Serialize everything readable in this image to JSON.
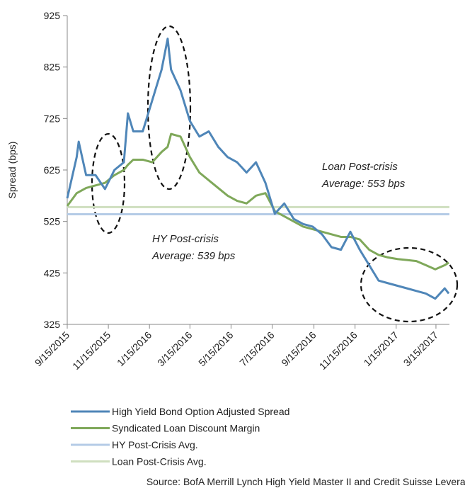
{
  "chart_data": {
    "type": "line",
    "y_label": "Spread (bps)",
    "x": [
      "9/15/2015",
      "9/29/2015",
      "10/2/2015",
      "10/13/2015",
      "10/27/2015",
      "11/10/2015",
      "11/24/2015",
      "12/8/2015",
      "12/14/2015",
      "12/22/2015",
      "1/5/2016",
      "1/19/2016",
      "2/2/2016",
      "2/11/2016",
      "2/16/2016",
      "3/1/2016",
      "3/15/2016",
      "3/29/2016",
      "4/12/2016",
      "4/26/2016",
      "5/10/2016",
      "5/24/2016",
      "6/7/2016",
      "6/21/2016",
      "7/5/2016",
      "7/19/2016",
      "8/2/2016",
      "8/16/2016",
      "8/30/2016",
      "9/13/2016",
      "9/27/2016",
      "10/11/2016",
      "10/25/2016",
      "11/8/2016",
      "11/22/2016",
      "12/6/2016",
      "12/20/2016",
      "1/3/2017",
      "1/17/2017",
      "1/31/2017",
      "2/14/2017",
      "2/28/2017",
      "3/14/2017",
      "3/28/2017",
      "4/3/2017"
    ],
    "series": [
      {
        "name": "High Yield Bond Option Adjusted Spread",
        "color": "#4f86b8",
        "values": [
          570,
          650,
          680,
          615,
          615,
          588,
          625,
          640,
          735,
          700,
          700,
          760,
          820,
          880,
          820,
          780,
          720,
          690,
          700,
          670,
          650,
          640,
          620,
          640,
          600,
          540,
          560,
          530,
          520,
          515,
          500,
          475,
          470,
          505,
          470,
          440,
          410,
          405,
          400,
          395,
          390,
          385,
          375,
          395,
          385
        ]
      },
      {
        "name": "Syndicated Loan Discount Margin",
        "color": "#7fa85a",
        "values": [
          555,
          580,
          582,
          590,
          595,
          600,
          615,
          625,
          635,
          645,
          645,
          640,
          660,
          670,
          695,
          690,
          650,
          620,
          605,
          590,
          575,
          565,
          560,
          575,
          580,
          545,
          535,
          525,
          515,
          510,
          505,
          500,
          495,
          495,
          490,
          470,
          460,
          455,
          452,
          450,
          448,
          440,
          432,
          440,
          445
        ]
      }
    ],
    "reference_lines": [
      {
        "name": "HY Post-Crisis Avg.",
        "value": 539,
        "color": "#b4cbe6"
      },
      {
        "name": "Loan Post-Crisis Avg.",
        "value": 553,
        "color": "#cfdfbf"
      }
    ],
    "annotations": [
      {
        "lines": [
          "Loan Post-crisis",
          "Average: 553 bps"
        ]
      },
      {
        "lines": [
          "HY Post-crisis",
          "Average: 539 bps"
        ]
      }
    ],
    "xlim": [
      "9/15/2015",
      "4/4/2017"
    ],
    "xticks": [
      "9/15/2015",
      "11/15/2015",
      "1/15/2016",
      "3/15/2016",
      "5/15/2016",
      "7/15/2016",
      "9/15/2016",
      "11/15/2016",
      "1/15/2017",
      "3/15/2017"
    ],
    "ylim": [
      325,
      925
    ],
    "yticks": [
      325,
      425,
      525,
      625,
      725,
      825,
      925
    ],
    "source": "Source: BofA Merrill Lynch High Yield Master II and Credit Suisse Leveraged"
  }
}
